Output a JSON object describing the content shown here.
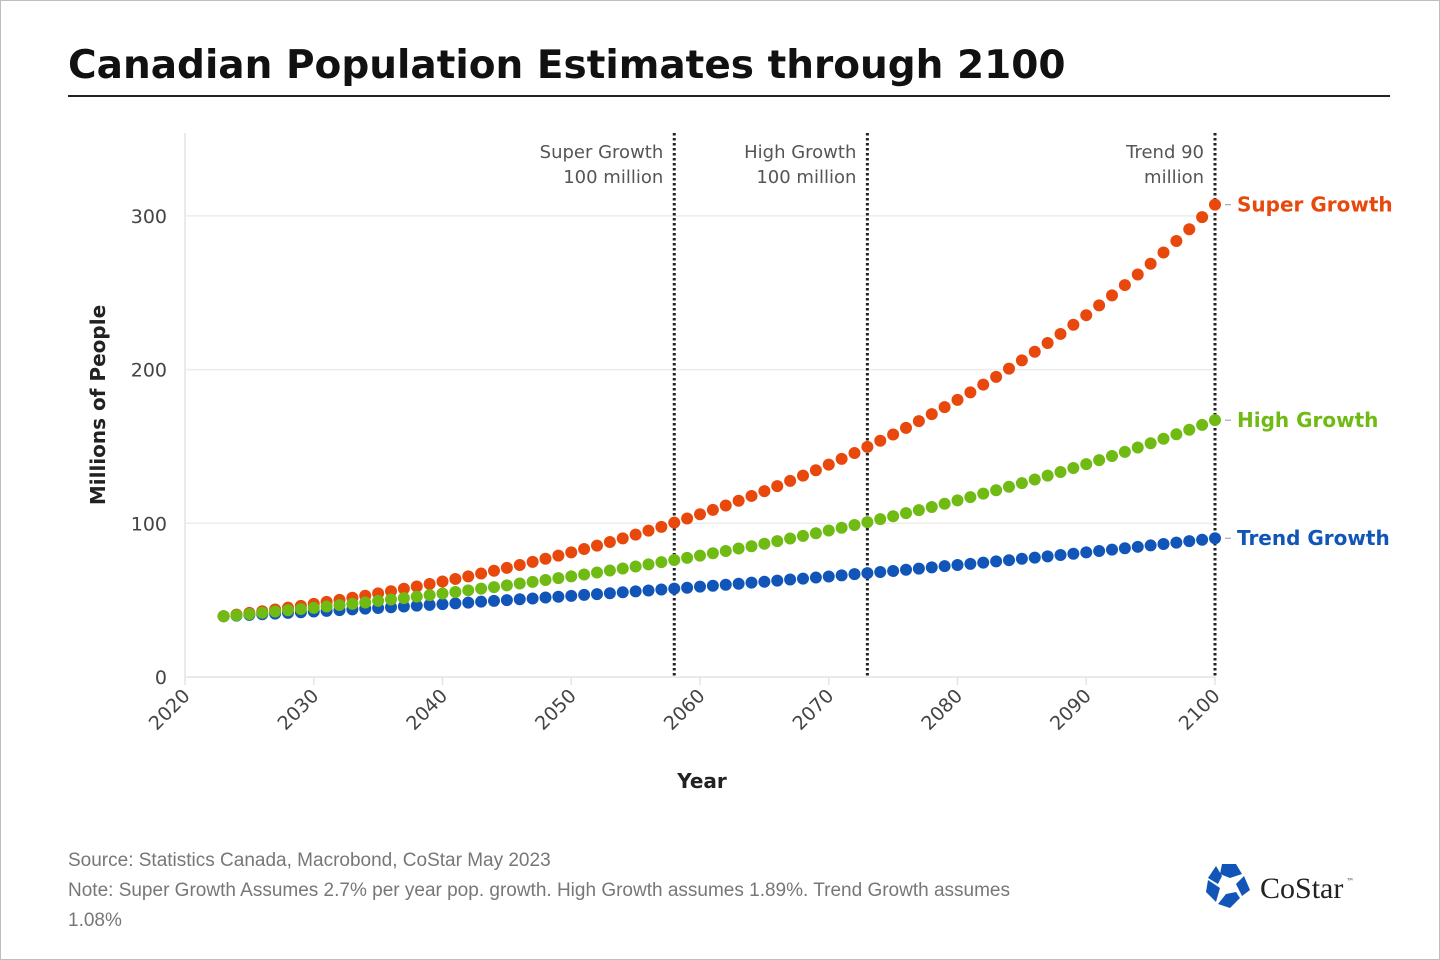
{
  "chart_data": {
    "type": "scatter",
    "title": "Canadian Population Estimates through 2100",
    "xlabel": "Year",
    "ylabel": "Millions of People",
    "xlim": [
      2020,
      2100
    ],
    "ylim": [
      0,
      350
    ],
    "x_ticks": [
      "2020",
      "2030",
      "2040",
      "2050",
      "2060",
      "2070",
      "2080",
      "2090",
      "2100"
    ],
    "y_ticks": [
      "0",
      "100",
      "200",
      "300"
    ],
    "grid": "horizontal",
    "x_start": 2023,
    "x_end": 2100,
    "series": [
      {
        "name": "Trend Growth",
        "color": "#1155b8",
        "values": [
          39.5,
          39.9,
          40.4,
          40.8,
          41.2,
          41.7,
          42.1,
          42.6,
          43.0,
          43.5,
          44.0,
          44.5,
          44.9,
          45.4,
          45.9,
          46.4,
          46.9,
          47.4,
          47.9,
          48.4,
          49.0,
          49.5,
          50.0,
          50.6,
          51.1,
          51.7,
          52.2,
          52.8,
          53.4,
          53.9,
          54.5,
          55.1,
          55.7,
          56.3,
          56.9,
          57.5,
          58.1,
          58.8,
          59.4,
          60.0,
          60.7,
          61.4,
          62.0,
          62.7,
          63.4,
          64.0,
          64.7,
          65.4,
          66.1,
          66.9,
          67.6,
          68.3,
          69.0,
          69.8,
          70.5,
          71.3,
          72.1,
          72.9,
          73.6,
          74.4,
          75.2,
          76.0,
          76.9,
          77.7,
          78.5,
          79.4,
          80.2,
          81.1,
          82.0,
          82.9,
          83.8,
          84.7,
          85.6,
          86.5,
          87.4,
          88.4,
          89.3,
          90.3
        ]
      },
      {
        "name": "Super Growth",
        "color": "#e8480c",
        "values": [
          39.5,
          40.6,
          41.7,
          42.8,
          43.9,
          45.1,
          46.3,
          47.6,
          48.9,
          50.2,
          51.6,
          52.9,
          54.4,
          55.8,
          57.4,
          58.9,
          60.5,
          62.1,
          63.8,
          65.5,
          67.3,
          69.1,
          71.0,
          72.9,
          74.9,
          76.9,
          79.0,
          81.1,
          83.3,
          85.5,
          87.8,
          90.2,
          92.6,
          95.2,
          97.7,
          100.4,
          103.1,
          105.9,
          108.7,
          111.6,
          114.7,
          117.8,
          120.9,
          124.2,
          127.6,
          131.0,
          134.5,
          138.2,
          141.9,
          145.7,
          149.7,
          153.7,
          157.8,
          162.1,
          166.5,
          171.0,
          175.6,
          180.3,
          185.2,
          190.2,
          195.3,
          200.6,
          206.0,
          211.6,
          217.3,
          223.2,
          229.2,
          235.4,
          241.8,
          248.3,
          255.0,
          261.9,
          268.9,
          276.2,
          283.7,
          291.3,
          299.2,
          307.3
        ]
      },
      {
        "name": "High Growth",
        "color": "#6fba13",
        "values": [
          39.5,
          40.2,
          41.0,
          41.8,
          42.6,
          43.4,
          44.2,
          45.0,
          45.9,
          46.8,
          47.6,
          48.5,
          49.5,
          50.4,
          51.3,
          52.3,
          53.3,
          54.3,
          55.3,
          56.4,
          57.5,
          58.5,
          59.6,
          60.8,
          61.9,
          63.1,
          64.3,
          65.5,
          66.7,
          68.0,
          69.3,
          70.6,
          71.9,
          73.3,
          74.7,
          76.1,
          77.5,
          79.0,
          80.5,
          82.0,
          83.6,
          85.1,
          86.7,
          88.4,
          90.1,
          91.8,
          93.5,
          95.3,
          97.1,
          98.9,
          100.8,
          102.7,
          104.6,
          106.6,
          108.6,
          110.6,
          112.7,
          114.9,
          117.0,
          119.3,
          121.5,
          123.8,
          126.1,
          128.5,
          131.0,
          133.4,
          136.0,
          138.5,
          141.1,
          143.8,
          146.5,
          149.3,
          152.1,
          155.0,
          157.9,
          160.9,
          164.0,
          167.1
        ]
      }
    ],
    "annotations": [
      {
        "x": 2058,
        "lines": [
          "Super Growth",
          "100 million"
        ]
      },
      {
        "x": 2073,
        "lines": [
          "High Growth",
          "100 million"
        ]
      },
      {
        "x": 2100,
        "lines": [
          "Trend 90",
          "million"
        ]
      }
    ]
  },
  "footer": {
    "source": "Source: Statistics Canada, Macrobond, CoStar May 2023",
    "note_line1": "Note: Super Growth Assumes 2.7% per year pop. growth. High Growth assumes 1.89%. Trend Growth assumes",
    "note_line2": "1.08%"
  },
  "logo": {
    "text": "CoStar",
    "tm": "™",
    "color": "#1155b8"
  }
}
